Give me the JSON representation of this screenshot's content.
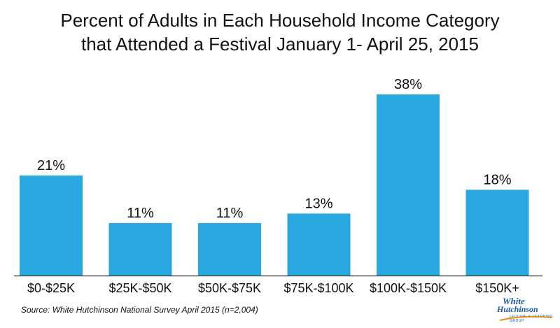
{
  "chart_data": {
    "type": "bar",
    "title": "Percent of Adults in Each Household Income Category",
    "subtitle": "that Attended a Festival January 1- April 25, 2015",
    "categories": [
      "$0-$25K",
      "$25K-$50K",
      "$50K-$75K",
      "$75K-$100K",
      "$100K-$150K",
      "$150K+"
    ],
    "values": [
      21,
      11,
      11,
      13,
      38,
      18
    ],
    "data_labels": [
      "21%",
      "11%",
      "11%",
      "13%",
      "38%",
      "18%"
    ],
    "xlabel": "",
    "ylabel": "",
    "ylim": [
      0,
      38
    ],
    "grid": false,
    "legend": "none",
    "bar_color": "#29a7df"
  },
  "source": "Source: White Hutchinson National Survey April 2015 (n=2,004)",
  "logo": {
    "line1": "White",
    "line2": "Hutchinson",
    "tagline": "Leisure & Learning Group"
  }
}
